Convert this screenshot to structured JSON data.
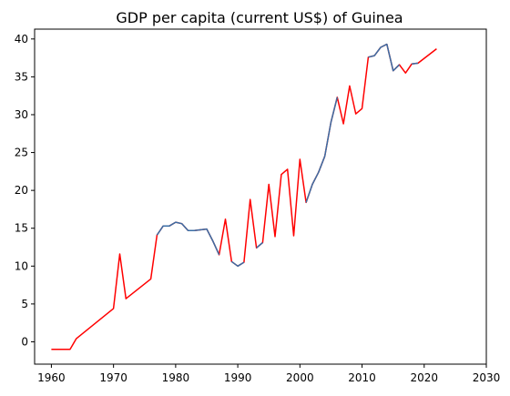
{
  "chart_data": {
    "type": "line",
    "title": "GDP per capita (current US$) of Guinea",
    "xlabel": "",
    "ylabel": "",
    "xlim": [
      1957.3,
      2030
    ],
    "ylim": [
      -2.95,
      41.3
    ],
    "xticks": [
      1960,
      1970,
      1980,
      1990,
      2000,
      2010,
      2020,
      2030
    ],
    "yticks": [
      0,
      5,
      10,
      15,
      20,
      25,
      30,
      35,
      40
    ],
    "grid": false,
    "legend": "none",
    "colors": {
      "red_series": "#ff0000",
      "blue_series": "#3a6ea5"
    },
    "series": [
      {
        "color": "#ff0000",
        "points": [
          [
            1960,
            -1.0
          ],
          [
            1963,
            -1.0
          ],
          [
            1964,
            0.4
          ],
          [
            1970,
            4.4
          ],
          [
            1971,
            11.6
          ],
          [
            1972,
            5.7
          ],
          [
            1976,
            8.3
          ],
          [
            1977,
            14.1
          ],
          [
            1978,
            15.3
          ],
          [
            1979,
            15.3
          ],
          [
            1980,
            15.8
          ],
          [
            1981,
            15.6
          ],
          [
            1982,
            14.7
          ],
          [
            1983,
            14.7
          ],
          [
            1985,
            14.9
          ],
          [
            1986,
            13.3
          ],
          [
            1987,
            11.5
          ],
          [
            1988,
            16.2
          ],
          [
            1989,
            10.6
          ],
          [
            1990,
            10.0
          ],
          [
            1991,
            10.5
          ],
          [
            1992,
            18.8
          ],
          [
            1993,
            12.4
          ],
          [
            1994,
            13.1
          ],
          [
            1995,
            20.8
          ],
          [
            1996,
            13.9
          ],
          [
            1997,
            22.1
          ],
          [
            1998,
            22.8
          ],
          [
            1999,
            14.0
          ],
          [
            2000,
            24.1
          ],
          [
            2001,
            18.4
          ],
          [
            2002,
            20.8
          ],
          [
            2003,
            22.4
          ],
          [
            2004,
            24.5
          ],
          [
            2005,
            29.0
          ],
          [
            2006,
            32.3
          ],
          [
            2007,
            28.8
          ],
          [
            2008,
            33.8
          ],
          [
            2009,
            30.1
          ],
          [
            2010,
            30.8
          ],
          [
            2011,
            37.6
          ],
          [
            2012,
            37.8
          ],
          [
            2013,
            38.9
          ],
          [
            2014,
            39.3
          ],
          [
            2015,
            35.8
          ],
          [
            2016,
            36.6
          ],
          [
            2017,
            35.5
          ],
          [
            2018,
            36.7
          ],
          [
            2019,
            36.8
          ],
          [
            2022,
            38.7
          ]
        ]
      },
      {
        "color": "#3a6ea5",
        "segments": [
          [
            [
              1977,
              14.1
            ],
            [
              1978,
              15.3
            ],
            [
              1979,
              15.3
            ],
            [
              1980,
              15.8
            ],
            [
              1981,
              15.6
            ],
            [
              1982,
              14.7
            ],
            [
              1983,
              14.7
            ],
            [
              1985,
              14.9
            ],
            [
              1986,
              13.3
            ],
            [
              1987,
              11.5
            ]
          ],
          [
            [
              1989,
              10.6
            ],
            [
              1990,
              10.0
            ],
            [
              1991,
              10.5
            ]
          ],
          [
            [
              1993,
              12.4
            ],
            [
              1994,
              13.1
            ]
          ],
          [
            [
              2001,
              18.4
            ],
            [
              2002,
              20.8
            ],
            [
              2003,
              22.4
            ],
            [
              2004,
              24.5
            ],
            [
              2005,
              29.0
            ],
            [
              2006,
              32.3
            ]
          ],
          [
            [
              2011,
              37.6
            ],
            [
              2012,
              37.8
            ],
            [
              2013,
              38.9
            ],
            [
              2014,
              39.3
            ],
            [
              2015,
              35.8
            ],
            [
              2016,
              36.6
            ]
          ],
          [
            [
              2018,
              36.7
            ],
            [
              2019,
              36.8
            ]
          ]
        ]
      }
    ]
  }
}
